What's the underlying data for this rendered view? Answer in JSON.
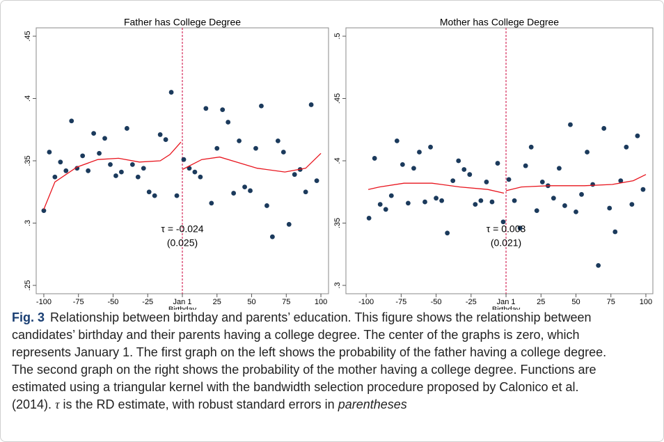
{
  "chart_data": [
    {
      "type": "scatter",
      "title": "Father has College Degree",
      "xlabel": "Birthday",
      "xlim": [
        -105.5,
        105.5
      ],
      "ylim": [
        0.2433,
        0.4567
      ],
      "xticks": [
        -100,
        -75,
        -50,
        -25,
        {
          "value": 0,
          "label": "Jan 1"
        },
        25,
        50,
        75,
        100
      ],
      "yticks": [
        {
          "value": 0.25,
          "label": ".25"
        },
        {
          "value": 0.3,
          "label": ".3"
        },
        {
          "value": 0.35,
          "label": ".35"
        },
        {
          "value": 0.4,
          "label": ".4"
        },
        {
          "value": 0.45,
          "label": ".45"
        }
      ],
      "cutoff_color": "#d42a5a",
      "annotations": [
        "τ = -0.024",
        "(0.025)"
      ],
      "series": [
        {
          "mode": "markers",
          "color": "#1b3a5c",
          "x": [
            -100,
            -96,
            -92,
            -88,
            -84,
            -80,
            -76,
            -72,
            -68,
            -64,
            -60,
            -56,
            -52,
            -48,
            -44,
            -40,
            -36,
            -32,
            -28,
            -24,
            -20,
            -16,
            -12,
            -8,
            -4,
            1,
            5,
            9,
            13,
            17,
            21,
            25,
            29,
            33,
            37,
            41,
            45,
            49,
            53,
            57,
            61,
            65,
            69,
            73,
            77,
            81,
            85,
            89,
            93,
            97
          ],
          "values": [
            0.31,
            0.357,
            0.337,
            0.349,
            0.342,
            0.382,
            0.344,
            0.354,
            0.342,
            0.372,
            0.356,
            0.368,
            0.347,
            0.338,
            0.341,
            0.376,
            0.347,
            0.337,
            0.344,
            0.325,
            0.322,
            0.371,
            0.367,
            0.405,
            0.322,
            0.351,
            0.344,
            0.341,
            0.337,
            0.392,
            0.316,
            0.36,
            0.391,
            0.381,
            0.324,
            0.366,
            0.329,
            0.326,
            0.36,
            0.394,
            0.314,
            0.289,
            0.366,
            0.357,
            0.299,
            0.339,
            0.343,
            0.325,
            0.395,
            0.334
          ]
        },
        {
          "mode": "line",
          "color": "#e8141d",
          "x": [
            -100,
            -92,
            -76,
            -61,
            -46,
            -31,
            -16,
            -9,
            -1
          ],
          "values": [
            0.311,
            0.333,
            0.345,
            0.351,
            0.352,
            0.349,
            0.35,
            0.355,
            0.365
          ]
        },
        {
          "mode": "line",
          "color": "#e8141d",
          "x": [
            0,
            14,
            27,
            39,
            54,
            74,
            89,
            100
          ],
          "values": [
            0.343,
            0.351,
            0.353,
            0.349,
            0.344,
            0.341,
            0.344,
            0.356
          ]
        }
      ]
    },
    {
      "type": "scatter",
      "title": "Mother has College Degree",
      "xlabel": "Birthday",
      "xlim": [
        -114.5,
        105
      ],
      "ylim": [
        0.2933,
        0.5067
      ],
      "xticks": [
        -100,
        -75,
        -50,
        -25,
        {
          "value": 0,
          "label": "Jan 1"
        },
        25,
        50,
        75,
        100
      ],
      "yticks": [
        {
          "value": 0.3,
          "label": ".3"
        },
        {
          "value": 0.35,
          "label": ".35"
        },
        {
          "value": 0.4,
          "label": ".4"
        },
        {
          "value": 0.45,
          "label": ".45"
        },
        {
          "value": 0.5,
          "label": ".5"
        }
      ],
      "cutoff_color": "#d42a5a",
      "annotations": [
        "τ = 0.003",
        "(0.021)"
      ],
      "series": [
        {
          "mode": "markers",
          "color": "#1b3a5c",
          "x": [
            -98,
            -94,
            -90,
            -86,
            -82,
            -78,
            -74,
            -70,
            -66,
            -62,
            -58,
            -54,
            -50,
            -46,
            -42,
            -38,
            -34,
            -30,
            -26,
            -22,
            -18,
            -14,
            -10,
            -6,
            -2,
            2,
            6,
            10,
            14,
            18,
            22,
            26,
            30,
            34,
            38,
            42,
            46,
            50,
            54,
            58,
            62,
            66,
            70,
            74,
            78,
            82,
            86,
            90,
            94,
            98
          ],
          "values": [
            0.354,
            0.402,
            0.365,
            0.361,
            0.372,
            0.416,
            0.397,
            0.366,
            0.394,
            0.407,
            0.367,
            0.411,
            0.37,
            0.368,
            0.342,
            0.384,
            0.4,
            0.393,
            0.389,
            0.365,
            0.368,
            0.383,
            0.367,
            0.398,
            0.351,
            0.385,
            0.368,
            0.346,
            0.396,
            0.411,
            0.36,
            0.383,
            0.38,
            0.37,
            0.394,
            0.364,
            0.429,
            0.359,
            0.373,
            0.407,
            0.381,
            0.316,
            0.426,
            0.362,
            0.343,
            0.384,
            0.411,
            0.365,
            0.42,
            0.377
          ]
        },
        {
          "mode": "line",
          "color": "#e8141d",
          "x": [
            -98.5,
            -90.5,
            -73,
            -53,
            -33,
            -13,
            -1.5
          ],
          "values": [
            0.377,
            0.379,
            0.382,
            0.382,
            0.379,
            0.377,
            0.374
          ]
        },
        {
          "mode": "line",
          "color": "#e8141d",
          "x": [
            0,
            11,
            31,
            56,
            76,
            91,
            100
          ],
          "values": [
            0.376,
            0.379,
            0.38,
            0.38,
            0.381,
            0.384,
            0.389
          ]
        }
      ]
    }
  ],
  "caption": {
    "label": "Fig. 3",
    "lines": [
      "Relationship between birthday and parents’ education. This figure shows the relationship between",
      "candidates’ birthday and their parents having a college degree. The center of the graphs is zero, which",
      "represents January 1. The first graph on the left shows the probability of the father having a college degree.",
      "The second graph on the right shows the probability of the mother having a college degree. Functions are",
      "estimated using a triangular kernel with the bandwidth selection procedure proposed by Calonico et al."
    ],
    "last": [
      "(2014).",
      "τ",
      "is the RD estimate, with robust standard errors in",
      "parentheses"
    ]
  }
}
